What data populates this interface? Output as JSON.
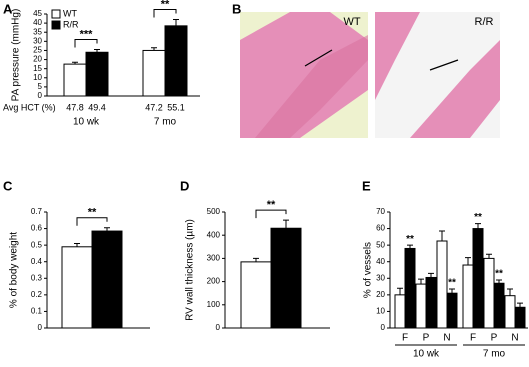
{
  "chart_data": [
    {
      "type": "bar",
      "panel": "A",
      "ylabel": "PA pressure (mmHg)",
      "ylim": [
        0,
        45
      ],
      "yticks": [
        0,
        5,
        10,
        15,
        20,
        25,
        30,
        35,
        40,
        45
      ],
      "categories": [
        "10 wk",
        "7 mo"
      ],
      "legend": "upper left",
      "series": [
        {
          "name": "WT",
          "color": "#ffffff",
          "values": [
            17.5,
            25
          ],
          "errors": [
            1,
            1.5
          ]
        },
        {
          "name": "R/R",
          "color": "#000000",
          "values": [
            24,
            38.5
          ],
          "errors": [
            1.5,
            3.5
          ]
        }
      ],
      "significance": [
        "***",
        "**"
      ],
      "hct_label": "Avg HCT (%)",
      "hct": [
        [
          47.8,
          49.4
        ],
        [
          47.2,
          55.1
        ]
      ]
    },
    {
      "type": "bar",
      "panel": "C",
      "ylabel": "% of body weight",
      "ylim": [
        0,
        0.7
      ],
      "yticks": [
        0,
        0.1,
        0.2,
        0.3,
        0.4,
        0.5,
        0.6,
        0.7
      ],
      "categories": [
        null
      ],
      "series": [
        {
          "color": "#ffffff",
          "values": [
            0.49
          ],
          "errors": [
            0.02
          ]
        },
        {
          "color": "#000000",
          "values": [
            0.585
          ],
          "errors": [
            0.02
          ]
        }
      ],
      "significance": [
        "**"
      ]
    },
    {
      "type": "bar",
      "panel": "D",
      "ylabel": "RV wall thickness (µm)",
      "ylim": [
        0,
        500
      ],
      "yticks": [
        0,
        100,
        200,
        300,
        400,
        500
      ],
      "categories": [
        null
      ],
      "series": [
        {
          "color": "#ffffff",
          "values": [
            285
          ],
          "errors": [
            15
          ]
        },
        {
          "color": "#000000",
          "values": [
            430
          ],
          "errors": [
            35
          ]
        }
      ],
      "significance": [
        "**"
      ]
    },
    {
      "type": "bar",
      "panel": "E",
      "ylabel": "% of vessels",
      "ylim": [
        0,
        70
      ],
      "yticks": [
        0,
        10,
        20,
        30,
        40,
        50,
        60,
        70
      ],
      "categories": [
        "F",
        "P",
        "N",
        "F",
        "P",
        "N"
      ],
      "groups": [
        "10 wk",
        "7 mo"
      ],
      "series": [
        {
          "color": "#ffffff",
          "values": [
            20,
            26.5,
            52.5,
            38,
            42,
            19.5
          ],
          "errors": [
            4,
            3,
            6,
            4.5,
            2.5,
            4
          ]
        },
        {
          "color": "#000000",
          "values": [
            48,
            30.5,
            21,
            60,
            27,
            12.5
          ],
          "errors": [
            2,
            2.5,
            2.5,
            3,
            2,
            2.5
          ],
          "significance": [
            "**",
            null,
            "**",
            "**",
            "**",
            null
          ]
        }
      ]
    }
  ],
  "images": {
    "panel": "B",
    "labels": [
      "WT",
      "R/R"
    ]
  }
}
